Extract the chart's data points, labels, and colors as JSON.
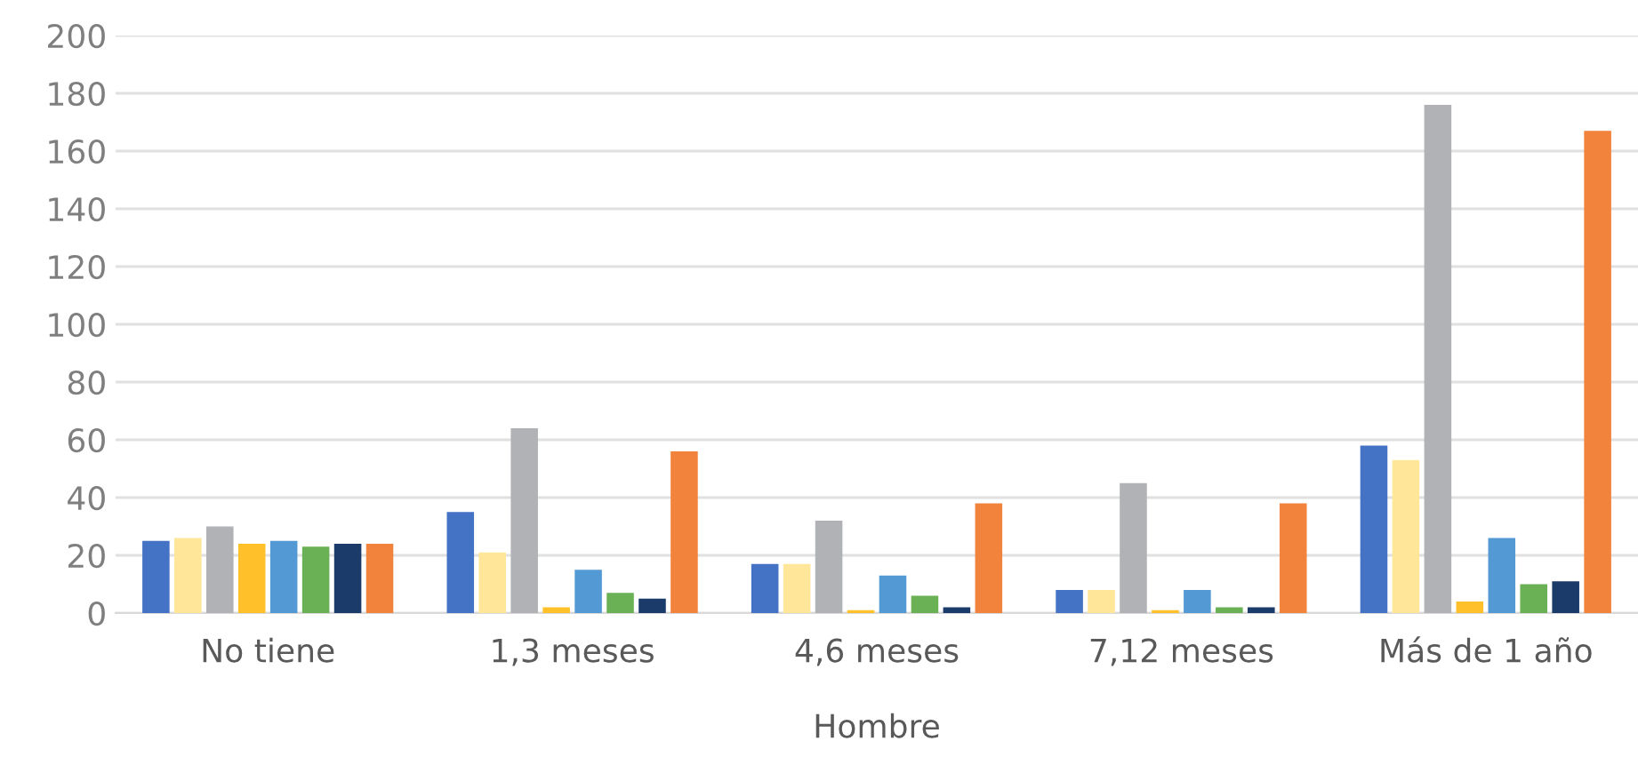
{
  "chart_data": {
    "type": "bar",
    "xlabel": "Hombre",
    "categories": [
      "No tiene",
      "1,3 meses",
      "4,6 meses",
      "7,12 meses",
      "Más de 1 año"
    ],
    "series": [
      {
        "color": "#4472c4",
        "values": [
          25,
          35,
          17,
          8,
          58
        ]
      },
      {
        "color": "#ffe699",
        "values": [
          26,
          21,
          17,
          8,
          53
        ]
      },
      {
        "color": "#b0b2b5",
        "values": [
          30,
          64,
          32,
          45,
          176
        ]
      },
      {
        "color": "#ffc02a",
        "values": [
          24,
          2,
          1,
          1,
          4
        ]
      },
      {
        "color": "#539ad5",
        "values": [
          25,
          15,
          13,
          8,
          26
        ]
      },
      {
        "color": "#6ab155",
        "values": [
          23,
          7,
          6,
          2,
          10
        ]
      },
      {
        "color": "#1b3b6b",
        "values": [
          24,
          5,
          2,
          2,
          11
        ]
      },
      {
        "color": "#f2833c",
        "values": [
          24,
          56,
          38,
          38,
          167
        ]
      }
    ],
    "ylim": [
      0,
      200
    ],
    "yticks": [
      0,
      20,
      40,
      60,
      80,
      100,
      120,
      140,
      160,
      180,
      200
    ],
    "grid": "y"
  }
}
